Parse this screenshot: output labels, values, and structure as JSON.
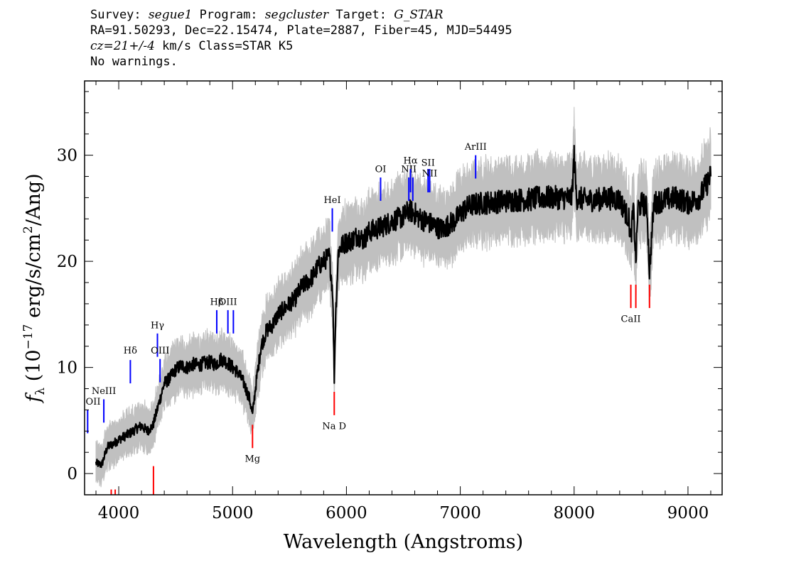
{
  "header": {
    "line1": {
      "survey_label": "Survey:",
      "survey": "segue1",
      "program_label": "Program:",
      "program": "segcluster",
      "target_label": "Target:",
      "target": "G_STAR"
    },
    "line2": "RA=91.50293, Dec=22.15474, Plate=2887, Fiber=45, MJD=54495",
    "line3": {
      "cz": "cz=21+/-4",
      "rest": "km/s Class=STAR K5"
    },
    "line4": "No warnings."
  },
  "chart_data": {
    "type": "line",
    "xlabel": "Wavelength (Angstroms)",
    "ylabel": "f_λ (10^-17 erg/s/cm^2/Ang)",
    "xlim": [
      3700,
      9300
    ],
    "ylim": [
      -2,
      37
    ],
    "xticks": [
      4000,
      5000,
      6000,
      7000,
      8000,
      9000
    ],
    "yticks": [
      0,
      10,
      20,
      30
    ],
    "colors": {
      "spectrum": "#000000",
      "error_band": "#c0c0c0",
      "emission": "#0000ff",
      "absorption": "#ff0000"
    },
    "series": [
      {
        "type": "spectrum",
        "x": [
          3800,
          3850,
          3900,
          3950,
          4000,
          4050,
          4100,
          4150,
          4200,
          4250,
          4300,
          4350,
          4400,
          4450,
          4500,
          4550,
          4600,
          4650,
          4700,
          4750,
          4800,
          4850,
          4900,
          4950,
          5000,
          5050,
          5100,
          5150,
          5175,
          5200,
          5250,
          5300,
          5350,
          5400,
          5450,
          5500,
          5550,
          5600,
          5650,
          5700,
          5750,
          5800,
          5850,
          5880,
          5893,
          5905,
          5930,
          5960,
          6000,
          6050,
          6100,
          6150,
          6200,
          6250,
          6300,
          6350,
          6400,
          6450,
          6500,
          6550,
          6600,
          6650,
          6700,
          6750,
          6800,
          6850,
          6900,
          6950,
          7000,
          7050,
          7100,
          7200,
          7300,
          7400,
          7500,
          7600,
          7700,
          7800,
          7900,
          7980,
          8000,
          8020,
          8100,
          8200,
          8300,
          8400,
          8480,
          8498,
          8520,
          8542,
          8560,
          8600,
          8640,
          8662,
          8700,
          8800,
          8900,
          9000,
          9100,
          9150,
          9200
        ],
        "y": [
          1.0,
          0.8,
          2.5,
          2.8,
          3.2,
          3.5,
          3.8,
          4.2,
          4.5,
          4.0,
          4.5,
          6.5,
          8.5,
          9.0,
          9.8,
          10.2,
          10.0,
          10.3,
          10.2,
          10.4,
          10.5,
          10.3,
          10.8,
          10.5,
          10.0,
          9.5,
          8.5,
          7.0,
          5.5,
          8.0,
          12.0,
          13.5,
          14.0,
          15.0,
          15.5,
          16.0,
          16.5,
          17.5,
          18.0,
          18.5,
          19.5,
          20.0,
          20.5,
          17.0,
          9.0,
          15.0,
          21.0,
          21.5,
          21.8,
          22.0,
          22.5,
          22.0,
          22.8,
          23.0,
          23.2,
          23.5,
          23.8,
          24.0,
          24.2,
          24.8,
          24.5,
          24.0,
          23.8,
          23.5,
          23.2,
          23.0,
          23.5,
          23.8,
          24.5,
          25.0,
          25.3,
          25.5,
          25.6,
          25.7,
          25.8,
          25.8,
          26.0,
          26.0,
          26.0,
          26.0,
          30.0,
          26.0,
          25.8,
          25.8,
          26.0,
          25.8,
          24.0,
          22.0,
          25.0,
          20.0,
          25.0,
          25.5,
          25.0,
          19.0,
          25.5,
          25.8,
          26.0,
          25.5,
          26.0,
          27.0,
          28.0
        ]
      }
    ],
    "lines": [
      {
        "label": "OII",
        "wave": 3727,
        "kind": "emission",
        "ymin": 3.8,
        "ymax": 6.0,
        "label_y": 6.5
      },
      {
        "label": "NeIII",
        "wave": 3869,
        "kind": "emission",
        "ymin": 4.8,
        "ymax": 7.0,
        "label_y": 7.5
      },
      {
        "label": "Hδ",
        "wave": 4102,
        "kind": "emission",
        "ymin": 8.5,
        "ymax": 10.7,
        "label_y": 11.3
      },
      {
        "label": "Hγ",
        "wave": 4340,
        "kind": "emission",
        "ymin": 11.0,
        "ymax": 13.2,
        "label_y": 13.7
      },
      {
        "label": "OIII",
        "wave": 4363,
        "kind": "emission",
        "ymin": 8.6,
        "ymax": 10.8,
        "label_y": 11.3
      },
      {
        "label": "Hβ",
        "wave": 4861,
        "kind": "emission",
        "ymin": 13.2,
        "ymax": 15.4,
        "label_y": 15.9
      },
      {
        "label": "OIII",
        "wave": 4959,
        "kind": "emission",
        "ymin": 13.2,
        "ymax": 15.4,
        "label_y": 15.9
      },
      {
        "label": "OIII",
        "wave": 5007,
        "kind": "emission",
        "ymin": 13.2,
        "ymax": 15.4,
        "label_y": null
      },
      {
        "label": "HeI",
        "wave": 5876,
        "kind": "emission",
        "ymin": 22.8,
        "ymax": 25.0,
        "label_y": 25.5
      },
      {
        "label": "OI",
        "wave": 6300,
        "kind": "emission",
        "ymin": 25.7,
        "ymax": 27.9,
        "label_y": 28.4
      },
      {
        "label": "NII",
        "wave": 6548,
        "kind": "emission",
        "ymin": 25.7,
        "ymax": 27.9,
        "label_y": 28.4
      },
      {
        "label": "Hα",
        "wave": 6563,
        "kind": "emission",
        "ymin": 26.5,
        "ymax": 28.7,
        "label_y": 29.2
      },
      {
        "label": "NII",
        "wave": 6583,
        "kind": "emission",
        "ymin": 25.7,
        "ymax": 27.9,
        "label_y": null
      },
      {
        "label": "SII",
        "wave": 6717,
        "kind": "emission",
        "ymin": 26.5,
        "ymax": 28.7,
        "label_y": 29.0
      },
      {
        "label": "SII",
        "wave": 6731,
        "kind": "emission",
        "ymin": 26.5,
        "ymax": 28.7,
        "label_y": null
      },
      {
        "label": "NII",
        "wave": 6731,
        "kind": "emission",
        "ymin": 26.5,
        "ymax": 28.7,
        "label_y": 28.0
      },
      {
        "label": "ArIII",
        "wave": 7135,
        "kind": "emission",
        "ymin": 27.8,
        "ymax": 30.0,
        "label_y": 30.5
      },
      {
        "label": "Na D",
        "wave": 5893,
        "kind": "absorption",
        "ymin": 5.5,
        "ymax": 7.7,
        "label_y": 4.2
      },
      {
        "label": "Mg",
        "wave": 5175,
        "kind": "absorption",
        "ymin": 2.4,
        "ymax": 4.6,
        "label_y": 1.1
      },
      {
        "label": "",
        "wave": 4305,
        "kind": "absorption",
        "ymin": -2.0,
        "ymax": 0.7,
        "label_y": null
      },
      {
        "label": "",
        "wave": 3934,
        "kind": "absorption",
        "ymin": -2.0,
        "ymax": -1.5,
        "label_y": null
      },
      {
        "label": "",
        "wave": 3969,
        "kind": "absorption",
        "ymin": -2.0,
        "ymax": -1.5,
        "label_y": null
      },
      {
        "label": "CaII",
        "wave": 8498,
        "kind": "absorption",
        "ymin": 15.6,
        "ymax": 17.8,
        "label_y": 14.3
      },
      {
        "label": "",
        "wave": 8542,
        "kind": "absorption",
        "ymin": 15.6,
        "ymax": 17.8,
        "label_y": null
      },
      {
        "label": "",
        "wave": 8662,
        "kind": "absorption",
        "ymin": 15.6,
        "ymax": 17.8,
        "label_y": null
      }
    ]
  }
}
